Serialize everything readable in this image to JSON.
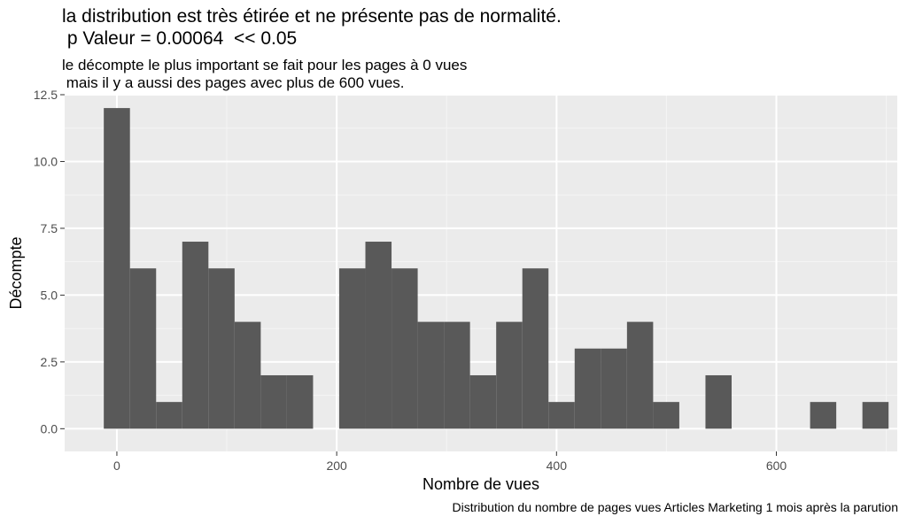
{
  "chart_data": {
    "type": "bar",
    "title": "la distribution est très étirée et ne présente pas de normalité.\n p Valeur = 0.00064  << 0.05",
    "subtitle": "le décompte le plus important se fait pour les pages à 0 vues\n mais il y a aussi des pages avec plus de 600 vues.",
    "caption": "Distribution du nombre de pages vues Articles Marketing 1 mois après la parution",
    "xlabel": "Nombre de vues",
    "ylabel": "Décompte",
    "xlim": [
      -47.5,
      710
    ],
    "ylim": [
      -0.85,
      12.5
    ],
    "x_ticks": [
      0,
      200,
      400,
      600
    ],
    "x_tick_labels": [
      "0",
      "200",
      "400",
      "600"
    ],
    "y_ticks": [
      0,
      2.5,
      5,
      7.5,
      10,
      12.5
    ],
    "y_tick_labels": [
      "0.0",
      "2.5",
      "5.0",
      "7.5",
      "10.0",
      "12.5"
    ],
    "bin_width": 23.8,
    "bin_centers": [
      0,
      23.8,
      47.6,
      71.4,
      95.2,
      119,
      142.8,
      166.6,
      190.4,
      214.2,
      238,
      261.8,
      285.6,
      309.4,
      333.2,
      357,
      380.8,
      404.6,
      428.4,
      452.2,
      476,
      499.8,
      523.6,
      547.4,
      571.2,
      595,
      618.8,
      642.6,
      666.4,
      690.2
    ],
    "counts": [
      12,
      6,
      1,
      7,
      6,
      4,
      2,
      2,
      0,
      6,
      7,
      6,
      4,
      4,
      2,
      4,
      6,
      1,
      3,
      3,
      4,
      1,
      0,
      2,
      0,
      0,
      0,
      1,
      0,
      1
    ],
    "grid": true,
    "colors": {
      "bar": "#595959",
      "panel": "#ebebeb",
      "grid_major": "#ffffff",
      "grid_minor": "#f5f5f5"
    }
  }
}
